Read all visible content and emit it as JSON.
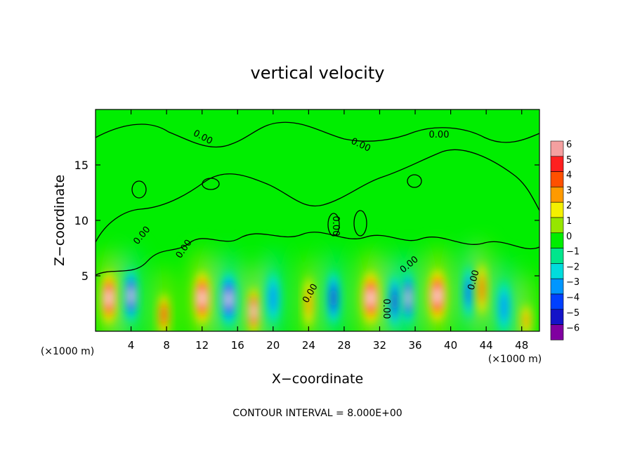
{
  "chart_data": {
    "type": "heatmap",
    "title": "vertical velocity",
    "xlabel": "X−coordinate",
    "ylabel": "Z−coordinate",
    "x_unit": "(×1000 m)",
    "z_unit": "(×1000 m)",
    "footer": "CONTOUR INTERVAL = 8.000E+00",
    "xlim": [
      0,
      50
    ],
    "ylim": [
      0,
      20
    ],
    "x_ticks": [
      4,
      8,
      12,
      16,
      20,
      24,
      28,
      32,
      36,
      40,
      44,
      48
    ],
    "x_tick_labels": [
      "4",
      "8",
      "12",
      "16",
      "20",
      "24",
      "28",
      "32",
      "36",
      "40",
      "44",
      "48"
    ],
    "y_ticks": [
      5,
      10,
      15
    ],
    "y_tick_labels": [
      "5",
      "10",
      "15"
    ],
    "colorbar": {
      "levels": [
        6,
        5,
        4,
        3,
        2,
        1,
        0,
        -1,
        -2,
        -3,
        -4,
        -5,
        -6
      ],
      "labels": [
        "6",
        "5",
        "4",
        "3",
        "2",
        "1",
        "0",
        "−1",
        "−2",
        "−3",
        "−4",
        "−5",
        "−6"
      ],
      "colors": [
        "#f4a0a0",
        "#ff2020",
        "#ff5000",
        "#ff9a00",
        "#f4f000",
        "#96e600",
        "#00ee00",
        "#00e68c",
        "#00dcdc",
        "#0096ff",
        "#0040ff",
        "#1414c8",
        "#8000a0"
      ]
    },
    "contour_label": "0.00",
    "cells": [
      {
        "x": 1.5,
        "z": 3.0,
        "w": 0.7,
        "v": 6
      },
      {
        "x": 4.0,
        "z": 3.2,
        "w": 0.55,
        "v": -6
      },
      {
        "x": 7.7,
        "z": 1.5,
        "w": 0.5,
        "v": 5
      },
      {
        "x": 12.0,
        "z": 3.0,
        "w": 0.75,
        "v": 6
      },
      {
        "x": 15.0,
        "z": 2.9,
        "w": 0.7,
        "v": -6
      },
      {
        "x": 17.8,
        "z": 1.8,
        "w": 0.5,
        "v": 6
      },
      {
        "x": 20.0,
        "z": 3.0,
        "w": 0.6,
        "v": -3
      },
      {
        "x": 24.0,
        "z": 2.6,
        "w": 0.45,
        "v": 3
      },
      {
        "x": 26.8,
        "z": 3.0,
        "w": 0.55,
        "v": -5
      },
      {
        "x": 31.0,
        "z": 3.0,
        "w": 0.8,
        "v": 6
      },
      {
        "x": 33.7,
        "z": 2.7,
        "w": 0.5,
        "v": -5
      },
      {
        "x": 35.2,
        "z": 3.0,
        "w": 0.45,
        "v": -6
      },
      {
        "x": 38.5,
        "z": 3.2,
        "w": 0.8,
        "v": 6
      },
      {
        "x": 42.0,
        "z": 3.5,
        "w": 0.45,
        "v": -4
      },
      {
        "x": 43.5,
        "z": 3.8,
        "w": 0.45,
        "v": 4
      },
      {
        "x": 46.0,
        "z": 2.2,
        "w": 0.6,
        "v": -3
      },
      {
        "x": 48.5,
        "z": 1.0,
        "w": 0.45,
        "v": 3
      }
    ]
  }
}
